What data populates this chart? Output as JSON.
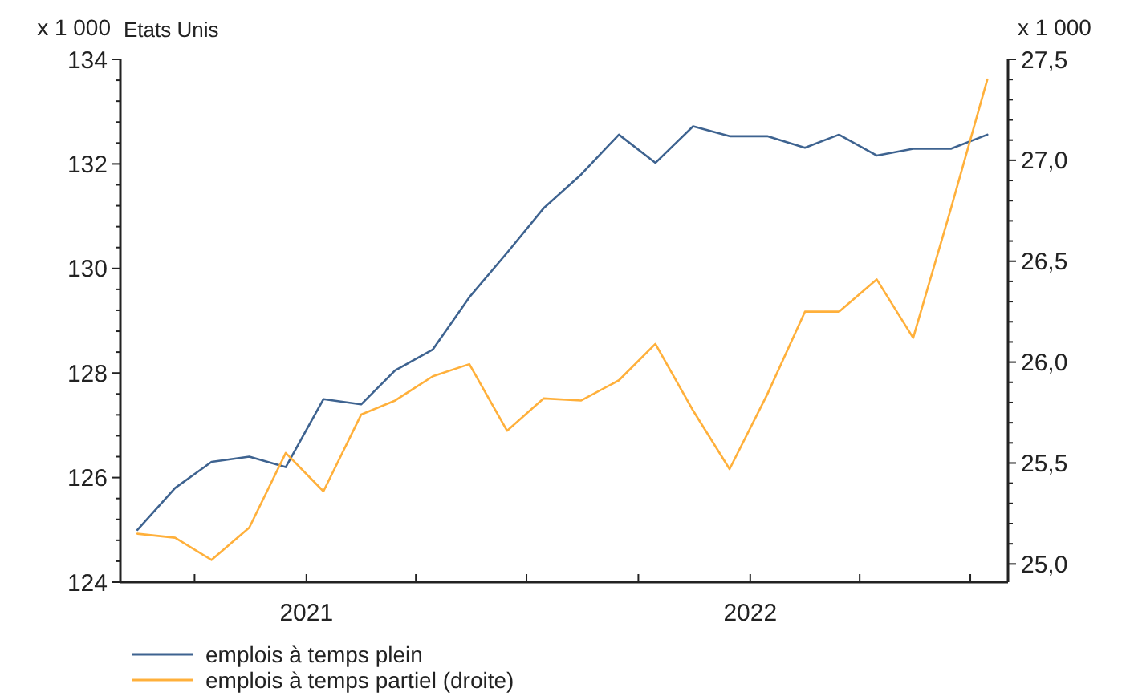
{
  "chart_data": {
    "type": "line",
    "subtitle": "Etats Unis",
    "ylabel": "x 1 000",
    "y2label": "x 1 000",
    "x": [
      "2020-08-15",
      "2020-09-15",
      "2020-10-15",
      "2020-11-15",
      "2020-12-15",
      "2021-01-15",
      "2021-02-15",
      "2021-03-15",
      "2021-04-15",
      "2021-05-15",
      "2021-06-15",
      "2021-07-15",
      "2021-08-15",
      "2021-09-15",
      "2021-10-15",
      "2021-11-15",
      "2021-12-15",
      "2022-01-15",
      "2022-02-15",
      "2022-03-15",
      "2022-04-15",
      "2022-05-15",
      "2022-06-15",
      "2022-07-15"
    ],
    "xlim": [
      "2020-08-01",
      "2022-08-01"
    ],
    "xticks": [
      {
        "value": "2020-10-01",
        "label": null
      },
      {
        "value": "2021-01-01",
        "label": "2021"
      },
      {
        "value": "2021-04-01",
        "label": null
      },
      {
        "value": "2021-07-01",
        "label": null
      },
      {
        "value": "2021-10-01",
        "label": null
      },
      {
        "value": "2022-01-01",
        "label": "2022"
      },
      {
        "value": "2022-04-01",
        "label": null
      },
      {
        "value": "2022-07-01",
        "label": null
      }
    ],
    "ylim": [
      124,
      134
    ],
    "yticks": [
      124,
      {
        "value": 124.4,
        "label": null
      },
      {
        "value": 124.8,
        "label": null
      },
      {
        "value": 125.2,
        "label": null
      },
      {
        "value": 125.6,
        "label": null
      },
      126,
      {
        "value": 126.4,
        "label": null
      },
      {
        "value": 126.8,
        "label": null
      },
      {
        "value": 127.2,
        "label": null
      },
      {
        "value": 127.6,
        "label": null
      },
      128,
      {
        "value": 128.4,
        "label": null
      },
      {
        "value": 128.8,
        "label": null
      },
      {
        "value": 129.2,
        "label": null
      },
      {
        "value": 129.6,
        "label": null
      },
      130,
      {
        "value": 130.4,
        "label": null
      },
      {
        "value": 130.8,
        "label": null
      },
      {
        "value": 131.2,
        "label": null
      },
      {
        "value": 131.6,
        "label": null
      },
      132,
      {
        "value": 132.4,
        "label": null
      },
      {
        "value": 132.8,
        "label": null
      },
      {
        "value": 133.2,
        "label": null
      },
      {
        "value": 133.6,
        "label": null
      },
      134
    ],
    "y2lim": [
      24.91,
      27.5
    ],
    "y2ticks": [
      {
        "value": 25,
        "label": "25,0"
      },
      {
        "value": 25.1,
        "label": null
      },
      {
        "value": 25.2,
        "label": null
      },
      {
        "value": 25.3,
        "label": null
      },
      {
        "value": 25.4,
        "label": null
      },
      {
        "value": 25.5,
        "label": "25,5"
      },
      {
        "value": 25.6,
        "label": null
      },
      {
        "value": 25.7,
        "label": null
      },
      {
        "value": 25.8,
        "label": null
      },
      {
        "value": 25.9,
        "label": null
      },
      {
        "value": 26,
        "label": "26,0"
      },
      {
        "value": 26.1,
        "label": null
      },
      {
        "value": 26.2,
        "label": null
      },
      {
        "value": 26.3,
        "label": null
      },
      {
        "value": 26.4,
        "label": null
      },
      {
        "value": 26.5,
        "label": "26,5"
      },
      {
        "value": 26.6,
        "label": null
      },
      {
        "value": 26.7,
        "label": null
      },
      {
        "value": 26.8,
        "label": null
      },
      {
        "value": 26.9,
        "label": null
      },
      {
        "value": 27,
        "label": "27,0"
      },
      {
        "value": 27.1,
        "label": null
      },
      {
        "value": 27.2,
        "label": null
      },
      {
        "value": 27.3,
        "label": null
      },
      {
        "value": 27.4,
        "label": null
      },
      {
        "value": 27.5,
        "label": "27,5"
      }
    ],
    "grid": false,
    "legend": "bottom left",
    "marker": "none",
    "line_style": "solid",
    "series": [
      {
        "name": "emplois à temps plein",
        "color": "#3e6390",
        "values": [
          125.0,
          125.8,
          126.3,
          126.4,
          126.2,
          127.5,
          127.4,
          128.05,
          128.45,
          129.45,
          130.3,
          131.15,
          131.8,
          132.56,
          132.02,
          132.72,
          132.53,
          132.53,
          132.31,
          132.56,
          132.16,
          132.29,
          132.29,
          132.56
        ]
      },
      {
        "name": "emplois à temps partiel (droite)",
        "color": "#ffb03b",
        "axis": "y2",
        "values": [
          25.15,
          25.13,
          25.02,
          25.18,
          25.55,
          25.36,
          25.74,
          25.81,
          25.93,
          25.99,
          25.66,
          25.82,
          25.81,
          25.91,
          26.09,
          25.76,
          25.47,
          25.84,
          26.25,
          26.25,
          26.41,
          26.12,
          26.76,
          27.4
        ]
      }
    ]
  }
}
